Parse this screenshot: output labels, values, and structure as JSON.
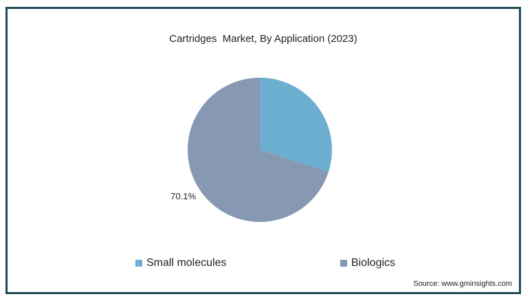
{
  "chart_data": {
    "type": "pie",
    "title": "Cartridges  Market, By Application (2023)",
    "categories": [
      "Small molecules",
      "Biologics"
    ],
    "values": [
      29.9,
      70.1
    ],
    "data_labels": [
      "",
      "70.1%"
    ],
    "colors": [
      "#6cafd1",
      "#8698b2"
    ],
    "legend_position": "bottom"
  },
  "source": "Source: www.gminsights.com"
}
